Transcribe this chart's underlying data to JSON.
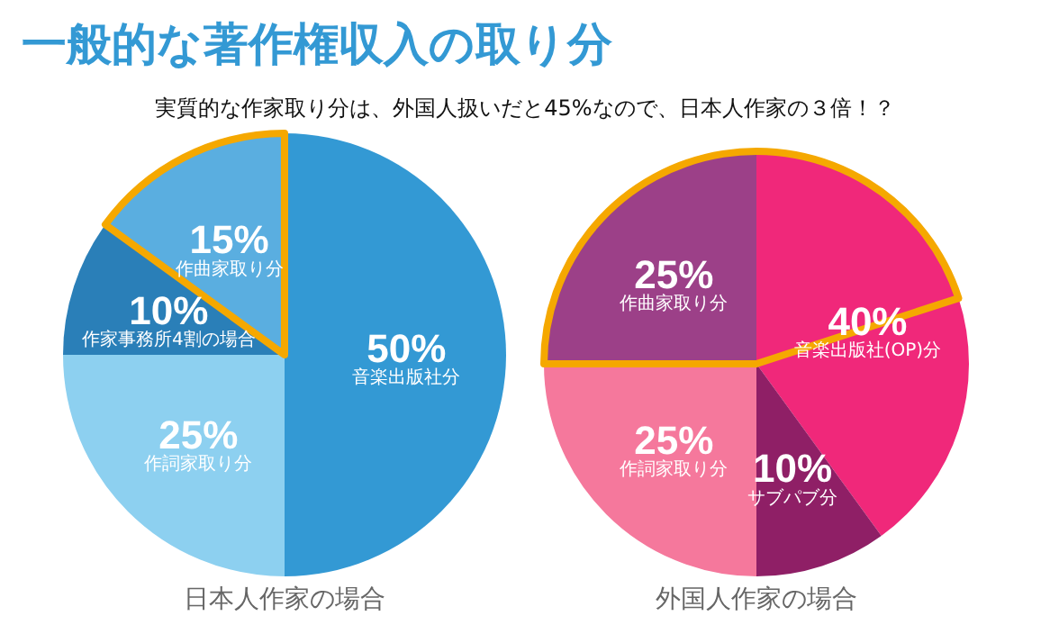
{
  "chart_data": [
    {
      "type": "pie",
      "title": "一般的な著作権収入の取り分",
      "subtitle": "実質的な作家取り分は、外国人扱いだと45%なので、日本人作家の３倍！？",
      "xlabel": "日本人作家の場合",
      "categories": [
        "音楽出版社分",
        "作詞家取り分",
        "作家事務所4割の場合",
        "作曲家取り分"
      ],
      "values": [
        50,
        25,
        10,
        15
      ],
      "value_labels": [
        "50%",
        "25%",
        "10%",
        "15%"
      ],
      "colors": [
        "#3399d4",
        "#8dd0f0",
        "#2a7fb8",
        "#5aaee0"
      ]
    },
    {
      "type": "pie",
      "xlabel": "外国人作家の場合",
      "categories": [
        "音楽出版社(OP)分",
        "サブパブ分",
        "作詞家取り分",
        "作曲家取り分"
      ],
      "values": [
        40,
        10,
        25,
        25
      ],
      "value_labels": [
        "40%",
        "10%",
        "25%",
        "25%"
      ],
      "colors": [
        "#f0287a",
        "#8f1f66",
        "#f5789c",
        "#9c4088"
      ]
    }
  ]
}
